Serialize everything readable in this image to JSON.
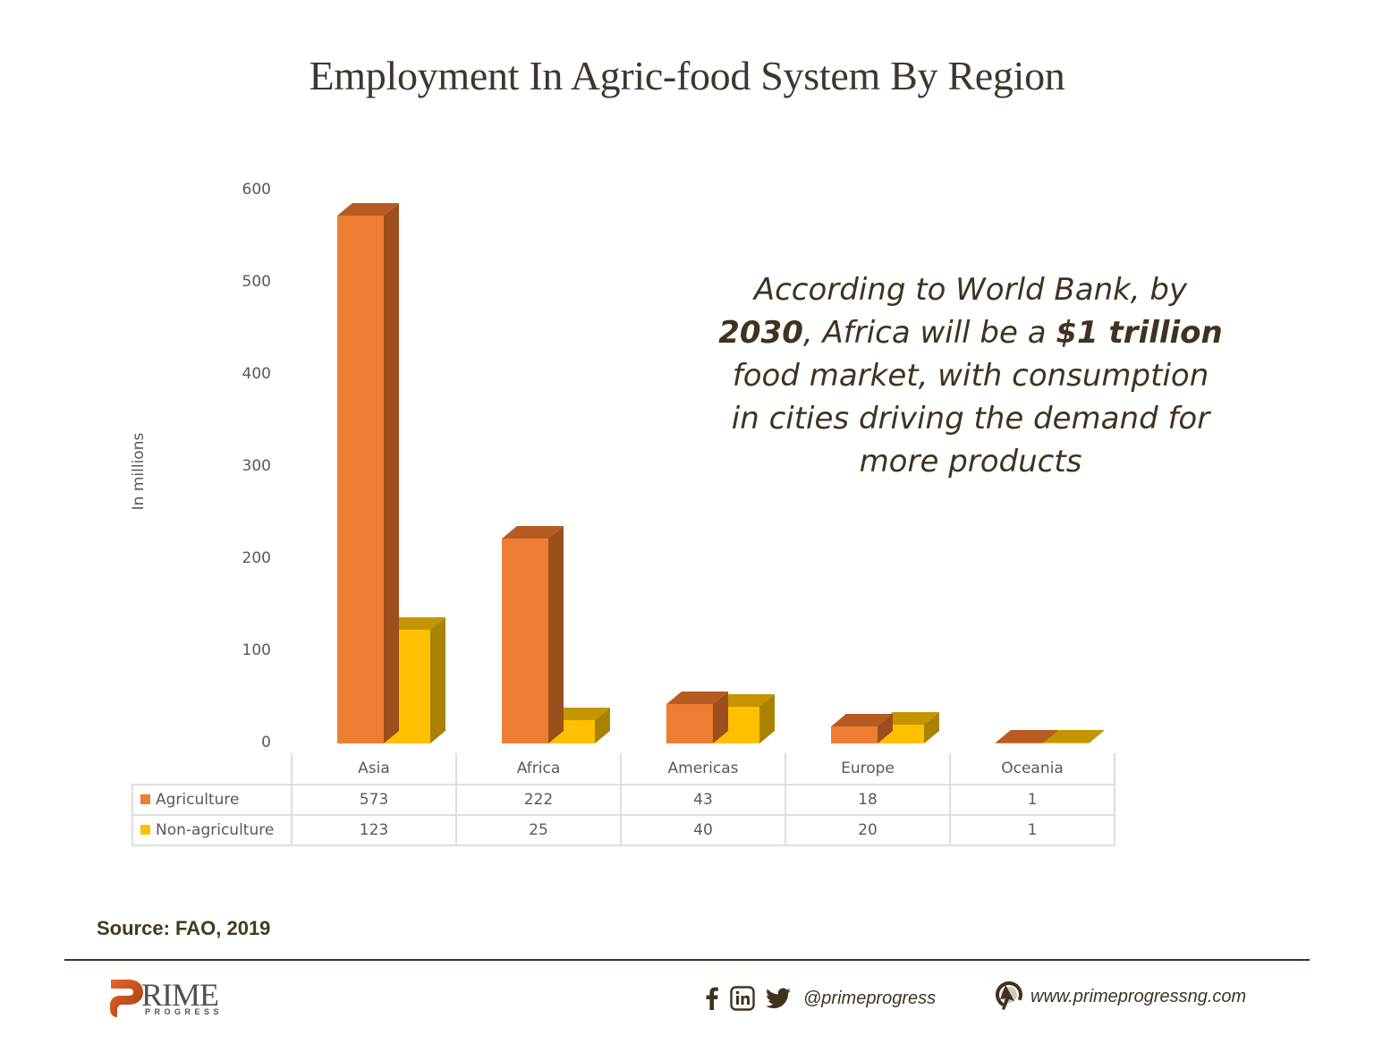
{
  "title": "Employment In Agric-food System By Region",
  "chart_data": {
    "type": "bar",
    "style": "3d-clustered-column-with-data-table",
    "title": "Employment In Agric-food System By Region",
    "xlabel": "",
    "ylabel": "In millions",
    "ylim": [
      0,
      600
    ],
    "yticks": [
      0,
      100,
      200,
      300,
      400,
      500,
      600
    ],
    "grid": false,
    "legend_position": "data-table",
    "categories": [
      "Asia",
      "Africa",
      "Americas",
      "Europe",
      "Oceania"
    ],
    "series": [
      {
        "name": "Agriculture",
        "color": "#ed7d31",
        "values": [
          573,
          222,
          43,
          18,
          1
        ]
      },
      {
        "name": "Non-agriculture",
        "color": "#ffc000",
        "values": [
          123,
          25,
          40,
          20,
          1
        ]
      }
    ]
  },
  "axis": {
    "ylabel": "In millions",
    "ticks": [
      "0",
      "100",
      "200",
      "300",
      "400",
      "500",
      "600"
    ]
  },
  "table": {
    "categories": [
      "Asia",
      "Africa",
      "Americas",
      "Europe",
      "Oceania"
    ],
    "rows": [
      {
        "label": "Agriculture",
        "values": [
          "573",
          "222",
          "43",
          "18",
          "1"
        ]
      },
      {
        "label": "Non-agriculture",
        "values": [
          "123",
          "25",
          "40",
          "20",
          "1"
        ]
      }
    ]
  },
  "callout": {
    "line1": "According to World Bank, by",
    "year": "2030",
    "mid": ", Africa will be a ",
    "amount": "$1 trillion",
    "line3": "food market, with consumption",
    "line4": "in cities driving the demand for",
    "line5": "more products"
  },
  "source": "Source: FAO, 2019",
  "footer": {
    "logo_main": "RIME",
    "logo_sub": "PROGRESS",
    "social_icons": [
      "facebook-icon",
      "linkedin-icon",
      "twitter-icon"
    ],
    "handle": "@primeprogress",
    "website_icon": "cursor-globe-icon",
    "website": "www.primeprogressng.com"
  },
  "colors": {
    "agriculture": "#ed7d31",
    "non_agriculture": "#ffc000",
    "text_dark": "#3f3320",
    "axis_text": "#595959"
  }
}
